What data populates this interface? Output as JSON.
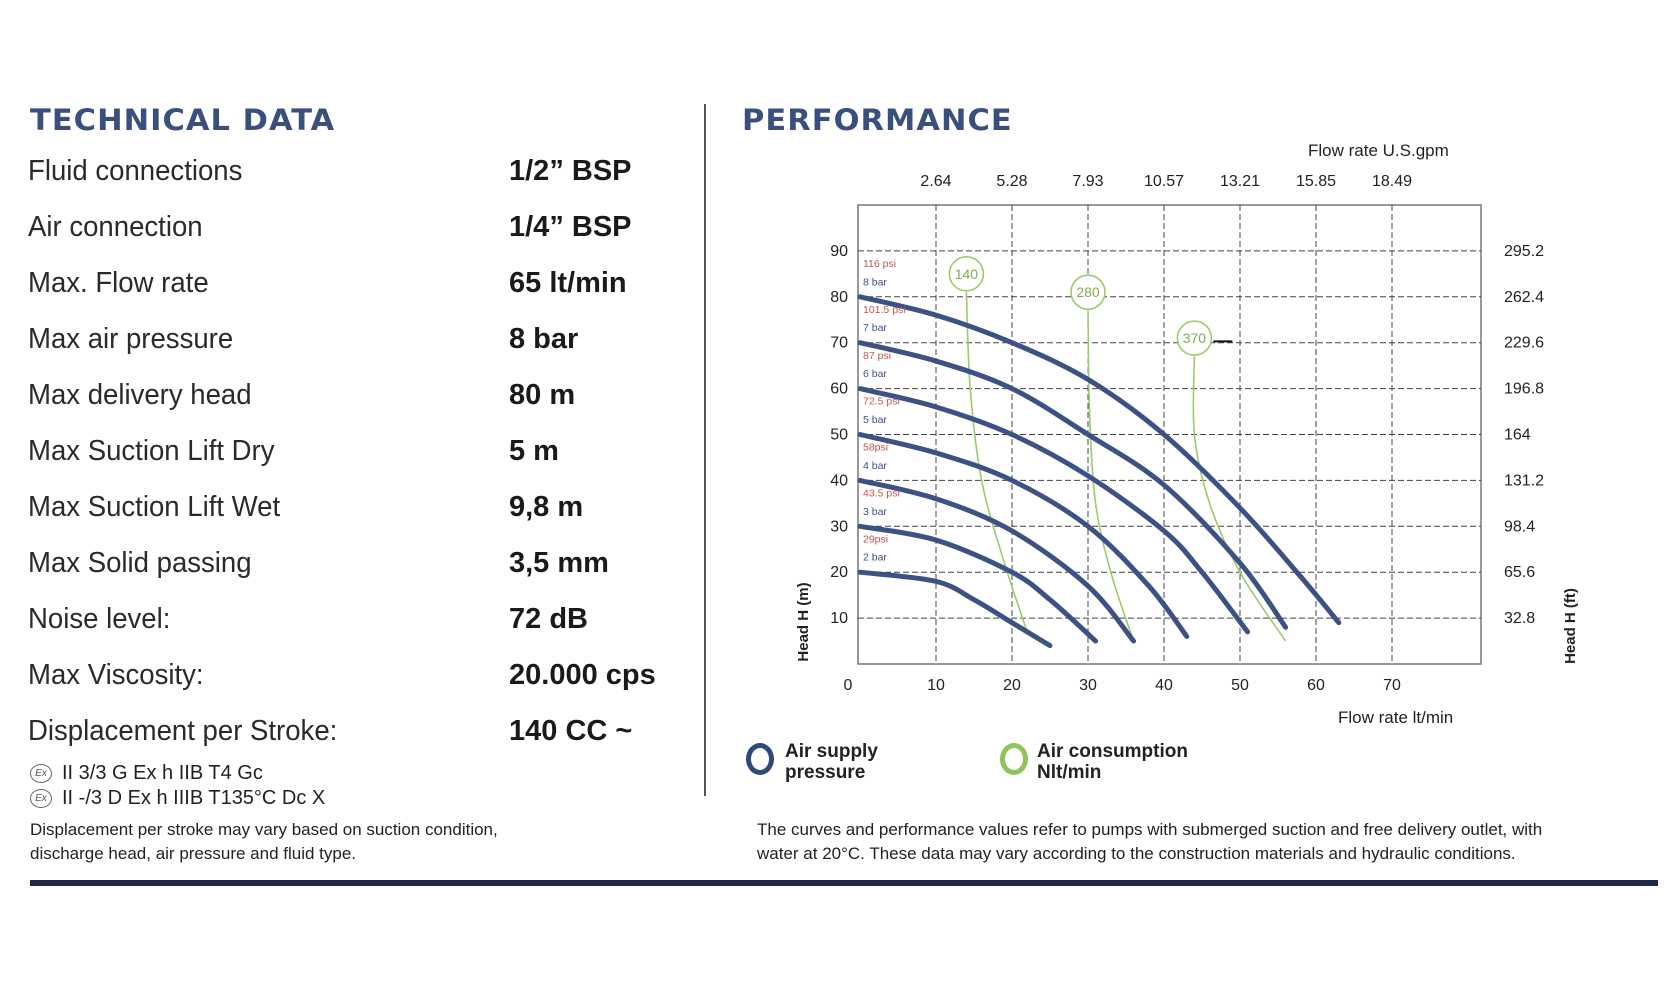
{
  "technical": {
    "title": "TECHNICAL DATA",
    "rows": [
      {
        "label": "Fluid connections",
        "value": "1/2” BSP"
      },
      {
        "label": "Air connection",
        "value": "1/4” BSP"
      },
      {
        "label": "Max. Flow rate",
        "value": "65 lt/min"
      },
      {
        "label": "Max air pressure",
        "value": "8 bar"
      },
      {
        "label": "Max delivery head",
        "value": "80 m"
      },
      {
        "label": "Max Suction Lift Dry",
        "value": "5 m"
      },
      {
        "label": "Max Suction Lift Wet",
        "value": "9,8 m"
      },
      {
        "label": "Max Solid passing",
        "value": "3,5 mm"
      },
      {
        "label": "Noise level:",
        "value": "72 dB"
      },
      {
        "label": "Max Viscosity:",
        "value": "20.000 cps"
      },
      {
        "label": "Displacement per Stroke:",
        "value": "140 CC ~"
      }
    ],
    "atex": [
      {
        "icon": "ex-atex-icon",
        "text": "II 3/3 G Ex h IIB T4 Gc"
      },
      {
        "icon": "ex-atex-icon",
        "text": "II -/3 D Ex h IIIB T135°C Dc X"
      }
    ],
    "note_lines": [
      "Displacement per stroke may vary based on suction condition,",
      "discharge head, air pressure and fluid type."
    ]
  },
  "performance": {
    "title": "PERFORMANCE",
    "legend": [
      {
        "line1": "Air supply",
        "line2": "pressure",
        "color": "#2f4a7a"
      },
      {
        "line1": "Air consumption",
        "line2": "Nlt/min",
        "color": "#8fc45a"
      }
    ],
    "note_lines": [
      "The curves and performance values refer to pumps with submerged suction and free delivery outlet, with",
      "water at 20°C. These data may vary according to the construction materials and hydraulic conditions."
    ]
  },
  "chart_data": {
    "type": "line",
    "xlabel": "Flow rate  lt/min",
    "ylabel": "Head H (m)",
    "x2label": "Flow rate U.S.gpm",
    "y2label": "Head H (ft)",
    "xlim": [
      0,
      80
    ],
    "ylim": [
      0,
      100
    ],
    "grid": true,
    "x_ticks": [
      "0",
      "10",
      "20",
      "30",
      "40",
      "50",
      "60",
      "70"
    ],
    "x_tick_values": [
      0,
      10,
      20,
      30,
      40,
      50,
      60,
      70
    ],
    "y_ticks": [
      "10",
      "20",
      "30",
      "40",
      "50",
      "60",
      "70",
      "80",
      "90"
    ],
    "y_tick_values": [
      10,
      20,
      30,
      40,
      50,
      60,
      70,
      80,
      90
    ],
    "x2_ticks": [
      "2.64",
      "5.28",
      "7.93",
      "10.57",
      "13.21",
      "15.85",
      "18.49"
    ],
    "y2_ticks": [
      "32.8",
      "65.6",
      "98.4",
      "131.2",
      "164",
      "196.8",
      "229.6",
      "262.4",
      "295.2"
    ],
    "series": [
      {
        "name": "8 bar",
        "psi": "116 psi",
        "points": [
          [
            0,
            80
          ],
          [
            10,
            76
          ],
          [
            20,
            70
          ],
          [
            30,
            62
          ],
          [
            40,
            50
          ],
          [
            50,
            34
          ],
          [
            58,
            19
          ],
          [
            63,
            9
          ]
        ]
      },
      {
        "name": "7 bar",
        "psi": "101.5 psi",
        "points": [
          [
            0,
            70
          ],
          [
            10,
            66
          ],
          [
            20,
            60
          ],
          [
            30,
            50
          ],
          [
            40,
            39
          ],
          [
            50,
            22
          ],
          [
            56,
            8
          ]
        ]
      },
      {
        "name": "6 bar",
        "psi": "87 psi",
        "points": [
          [
            0,
            60
          ],
          [
            10,
            56
          ],
          [
            20,
            50
          ],
          [
            30,
            41
          ],
          [
            40,
            29
          ],
          [
            45,
            20
          ],
          [
            51,
            7
          ]
        ]
      },
      {
        "name": "5 bar",
        "psi": "72.5 psi",
        "points": [
          [
            0,
            50
          ],
          [
            10,
            46
          ],
          [
            20,
            40
          ],
          [
            30,
            30
          ],
          [
            38,
            17
          ],
          [
            43,
            6
          ]
        ]
      },
      {
        "name": "4 bar",
        "psi": "58psi",
        "points": [
          [
            0,
            40
          ],
          [
            10,
            36
          ],
          [
            20,
            29
          ],
          [
            30,
            17
          ],
          [
            36,
            5
          ]
        ]
      },
      {
        "name": "3 bar",
        "psi": "43.5 psi",
        "points": [
          [
            0,
            30
          ],
          [
            10,
            27
          ],
          [
            20,
            20
          ],
          [
            25,
            14
          ],
          [
            31,
            5
          ]
        ]
      },
      {
        "name": "2 bar",
        "psi": "29psi",
        "points": [
          [
            0,
            20
          ],
          [
            10,
            18
          ],
          [
            15,
            14
          ],
          [
            20,
            9
          ],
          [
            25,
            4
          ]
        ]
      }
    ],
    "air_consumption": [
      {
        "label": "140",
        "marker": [
          14,
          85
        ],
        "points": [
          [
            14,
            81
          ],
          [
            14.5,
            60
          ],
          [
            16,
            40
          ],
          [
            19,
            22
          ],
          [
            22,
            7
          ]
        ]
      },
      {
        "label": "280",
        "marker": [
          30,
          81
        ],
        "points": [
          [
            30,
            77
          ],
          [
            30.2,
            55
          ],
          [
            31,
            35
          ],
          [
            33,
            20
          ],
          [
            36,
            5
          ]
        ]
      },
      {
        "label": "370",
        "marker": [
          44,
          71
        ],
        "points": [
          [
            44,
            67
          ],
          [
            44,
            50
          ],
          [
            46,
            35
          ],
          [
            50,
            20
          ],
          [
            56,
            5
          ]
        ]
      }
    ]
  }
}
